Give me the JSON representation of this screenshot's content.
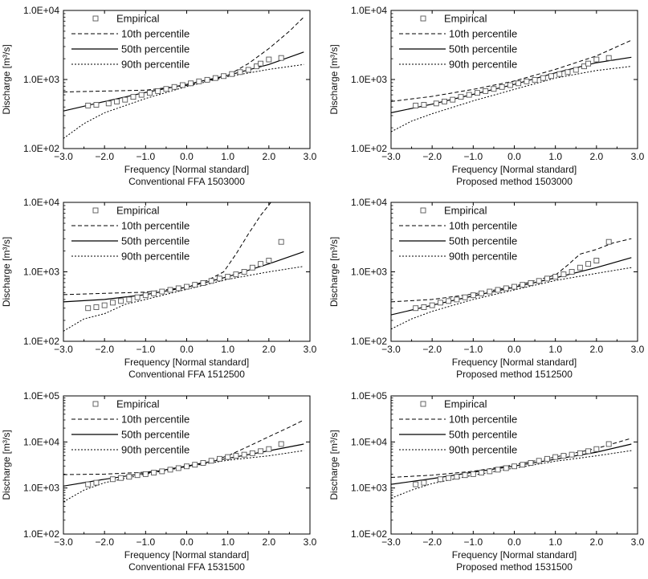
{
  "figure": {
    "legend_labels": [
      "Empirical",
      "10th percentile",
      "50th percentile",
      "90th percentile"
    ]
  },
  "chart_data": [
    {
      "type": "line",
      "title": "Conventional FFA 1503000",
      "xlabel": "Frequency [Normal standard]",
      "ylabel": "Discharge [m³/s]",
      "yscale": "log",
      "xlim": [
        -3.0,
        3.0
      ],
      "ylim": [
        100,
        10000
      ],
      "xticks": [
        "−3.0",
        "−2.0",
        "−1.0",
        "0.0",
        "1.0",
        "2.0",
        "3.0"
      ],
      "yticks": [
        "1.0E+02",
        "1.0E+03",
        "1.0E+04"
      ],
      "empirical": {
        "x": [
          -2.4,
          -2.2,
          -1.9,
          -1.7,
          -1.5,
          -1.3,
          -1.1,
          -0.9,
          -0.7,
          -0.5,
          -0.3,
          -0.1,
          0.1,
          0.3,
          0.5,
          0.7,
          0.9,
          1.1,
          1.3,
          1.5,
          1.7,
          1.8,
          2.0,
          2.3
        ],
        "y": [
          420,
          430,
          450,
          480,
          510,
          560,
          600,
          640,
          680,
          730,
          780,
          830,
          880,
          940,
          990,
          1050,
          1120,
          1200,
          1280,
          1380,
          1550,
          1700,
          1950,
          2050
        ]
      },
      "series": [
        {
          "name": "10th percentile",
          "x": [
            -3.0,
            -2.0,
            -1.0,
            0.0,
            0.5,
            1.0,
            1.5,
            2.0,
            2.5,
            2.85
          ],
          "y": [
            660,
            680,
            700,
            820,
            950,
            1150,
            1700,
            2800,
            5000,
            8000
          ]
        },
        {
          "name": "50th percentile",
          "x": [
            -3.0,
            -2.0,
            -1.0,
            0.0,
            1.0,
            2.0,
            2.85
          ],
          "y": [
            350,
            480,
            650,
            850,
            1150,
            1650,
            2500
          ]
        },
        {
          "name": "90th percentile",
          "x": [
            -3.0,
            -2.5,
            -2.0,
            -1.0,
            0.0,
            1.0,
            2.0,
            2.85
          ],
          "y": [
            140,
            230,
            330,
            530,
            790,
            1100,
            1400,
            1650
          ]
        }
      ]
    },
    {
      "type": "line",
      "title": "Proposed method 1503000",
      "xlabel": "Frequency [Normal standard]",
      "ylabel": "Discharge [m³/s]",
      "yscale": "log",
      "xlim": [
        -3.0,
        3.0
      ],
      "ylim": [
        100,
        10000
      ],
      "xticks": [
        "−3.0",
        "−2.0",
        "−1.0",
        "0.0",
        "1.0",
        "2.0",
        "3.0"
      ],
      "yticks": [
        "1.0E+02",
        "1.0E+03",
        "1.0E+04"
      ],
      "empirical": {
        "x": [
          -2.4,
          -2.2,
          -1.9,
          -1.7,
          -1.5,
          -1.3,
          -1.1,
          -0.9,
          -0.7,
          -0.5,
          -0.3,
          -0.1,
          0.1,
          0.3,
          0.5,
          0.7,
          0.9,
          1.1,
          1.3,
          1.5,
          1.7,
          1.8,
          2.0,
          2.3
        ],
        "y": [
          420,
          430,
          450,
          480,
          510,
          560,
          600,
          640,
          680,
          730,
          780,
          830,
          880,
          940,
          990,
          1050,
          1120,
          1200,
          1280,
          1380,
          1550,
          1700,
          1950,
          2050
        ]
      },
      "series": [
        {
          "name": "10th percentile",
          "x": [
            -3.0,
            -2.0,
            -1.0,
            0.0,
            1.0,
            2.0,
            2.85
          ],
          "y": [
            480,
            570,
            720,
            950,
            1400,
            2200,
            3700
          ]
        },
        {
          "name": "50th percentile",
          "x": [
            -3.0,
            -2.0,
            -1.0,
            0.0,
            1.0,
            2.0,
            2.85
          ],
          "y": [
            330,
            440,
            610,
            850,
            1250,
            1750,
            2100
          ]
        },
        {
          "name": "90th percentile",
          "x": [
            -3.0,
            -2.5,
            -2.0,
            -1.0,
            0.0,
            1.0,
            2.0,
            2.85
          ],
          "y": [
            175,
            250,
            320,
            490,
            720,
            1050,
            1350,
            1550
          ]
        }
      ]
    },
    {
      "type": "line",
      "title": "Conventional FFA 1512500",
      "xlabel": "Frequency [Normal standard]",
      "ylabel": "Discharge [m³/s]",
      "yscale": "log",
      "xlim": [
        -3.0,
        3.0
      ],
      "ylim": [
        100,
        10000
      ],
      "xticks": [
        "−3.0",
        "−2.0",
        "−1.0",
        "0.0",
        "1.0",
        "2.0",
        "3.0"
      ],
      "yticks": [
        "1.0E+02",
        "1.0E+03",
        "1.0E+04"
      ],
      "empirical": {
        "x": [
          -2.4,
          -2.2,
          -2.0,
          -1.8,
          -1.6,
          -1.4,
          -1.2,
          -1.0,
          -0.8,
          -0.6,
          -0.4,
          -0.2,
          0.0,
          0.2,
          0.4,
          0.6,
          0.8,
          1.0,
          1.2,
          1.4,
          1.6,
          1.8,
          2.0,
          2.3
        ],
        "y": [
          300,
          310,
          330,
          360,
          380,
          400,
          430,
          460,
          490,
          520,
          550,
          580,
          610,
          650,
          690,
          740,
          800,
          850,
          920,
          1000,
          1150,
          1300,
          1450,
          2700
        ]
      },
      "series": [
        {
          "name": "10th percentile",
          "x": [
            -3.0,
            -2.0,
            -1.0,
            0.0,
            0.5,
            0.9,
            1.2,
            1.5,
            1.8,
            2.05
          ],
          "y": [
            470,
            490,
            510,
            600,
            750,
            1000,
            1800,
            3500,
            6500,
            10000
          ]
        },
        {
          "name": "50th percentile",
          "x": [
            -3.0,
            -2.0,
            -1.0,
            0.0,
            1.0,
            2.0,
            2.85
          ],
          "y": [
            370,
            400,
            470,
            600,
            850,
            1300,
            1950
          ]
        },
        {
          "name": "90th percentile",
          "x": [
            -3.0,
            -2.5,
            -2.0,
            -1.5,
            -1.0,
            0.0,
            1.0,
            2.0,
            2.85
          ],
          "y": [
            140,
            210,
            250,
            340,
            400,
            560,
            780,
            1000,
            1200
          ]
        }
      ]
    },
    {
      "type": "line",
      "title": "Proposed method 1512500",
      "xlabel": "Frequency [Normal standard]",
      "ylabel": "Discharge [m³/s]",
      "yscale": "log",
      "xlim": [
        -3.0,
        3.0
      ],
      "ylim": [
        100,
        10000
      ],
      "xticks": [
        "−3.0",
        "−2.0",
        "−1.0",
        "0.0",
        "1.0",
        "2.0",
        "3.0"
      ],
      "yticks": [
        "1.0E+02",
        "1.0E+03",
        "1.0E+04"
      ],
      "empirical": {
        "x": [
          -2.4,
          -2.2,
          -2.0,
          -1.8,
          -1.6,
          -1.4,
          -1.2,
          -1.0,
          -0.8,
          -0.6,
          -0.4,
          -0.2,
          0.0,
          0.2,
          0.4,
          0.6,
          0.8,
          1.0,
          1.2,
          1.4,
          1.6,
          1.8,
          2.0,
          2.3
        ],
        "y": [
          300,
          310,
          330,
          360,
          380,
          400,
          430,
          460,
          490,
          520,
          550,
          580,
          610,
          650,
          690,
          740,
          800,
          850,
          920,
          1000,
          1150,
          1300,
          1450,
          2700
        ]
      },
      "series": [
        {
          "name": "10th percentile",
          "x": [
            -3.0,
            -2.0,
            -1.0,
            0.0,
            1.0,
            1.3,
            1.6,
            2.0,
            2.4,
            2.85
          ],
          "y": [
            370,
            400,
            480,
            620,
            900,
            1250,
            1800,
            2100,
            2600,
            3000
          ]
        },
        {
          "name": "50th percentile",
          "x": [
            -3.0,
            -2.0,
            -1.0,
            0.0,
            1.0,
            2.0,
            2.85
          ],
          "y": [
            240,
            330,
            450,
            600,
            820,
            1150,
            1600
          ]
        },
        {
          "name": "90th percentile",
          "x": [
            -3.0,
            -2.5,
            -2.0,
            -1.0,
            0.0,
            1.0,
            2.0,
            2.85
          ],
          "y": [
            150,
            210,
            270,
            400,
            550,
            750,
            950,
            1150
          ]
        }
      ]
    },
    {
      "type": "line",
      "title": "Conventional FFA 1531500",
      "xlabel": "Frequency [Normal standard]",
      "ylabel": "Discharge [m³/s]",
      "yscale": "log",
      "xlim": [
        -3.0,
        3.0
      ],
      "ylim": [
        100,
        100000
      ],
      "xticks": [
        "−3.0",
        "−2.0",
        "−1.0",
        "0.0",
        "1.0",
        "2.0",
        "3.0"
      ],
      "yticks": [
        "1.0E+02",
        "1.0E+03",
        "1.0E+04",
        "1.0E+05"
      ],
      "empirical": {
        "x": [
          -2.4,
          -2.2,
          -1.8,
          -1.6,
          -1.4,
          -1.2,
          -1.0,
          -0.8,
          -0.6,
          -0.4,
          -0.2,
          0.0,
          0.2,
          0.4,
          0.6,
          0.8,
          1.0,
          1.2,
          1.4,
          1.6,
          1.8,
          2.0,
          2.3
        ],
        "y": [
          1200,
          1300,
          1550,
          1650,
          1750,
          1900,
          2000,
          2150,
          2300,
          2500,
          2700,
          2950,
          3200,
          3500,
          3900,
          4300,
          4700,
          5000,
          5300,
          5700,
          6300,
          7000,
          9000
        ]
      },
      "series": [
        {
          "name": "10th percentile",
          "x": [
            -3.0,
            -2.0,
            -1.0,
            0.0,
            0.5,
            1.0,
            1.5,
            2.0,
            2.5,
            2.85
          ],
          "y": [
            1950,
            2000,
            2200,
            2900,
            3600,
            5000,
            8000,
            13000,
            21000,
            30000
          ]
        },
        {
          "name": "50th percentile",
          "x": [
            -3.0,
            -2.0,
            -1.0,
            0.0,
            1.0,
            2.0,
            2.85
          ],
          "y": [
            1100,
            1550,
            2100,
            3000,
            4400,
            6400,
            9000
          ]
        },
        {
          "name": "90th percentile",
          "x": [
            -3.0,
            -2.5,
            -2.0,
            -1.0,
            0.0,
            1.0,
            2.0,
            2.85
          ],
          "y": [
            500,
            900,
            1300,
            2000,
            2900,
            4000,
            5000,
            6500
          ]
        }
      ]
    },
    {
      "type": "line",
      "title": "Proposed method 1531500",
      "xlabel": "Frequency [Normal standard]",
      "ylabel": "Discharge [m³/s]",
      "yscale": "log",
      "xlim": [
        -3.0,
        3.0
      ],
      "ylim": [
        100,
        100000
      ],
      "xticks": [
        "−3.0",
        "−2.0",
        "−1.0",
        "0.0",
        "1.0",
        "2.0",
        "3.0"
      ],
      "yticks": [
        "1.0E+02",
        "1.0E+03",
        "1.0E+04",
        "1.0E+05"
      ],
      "empirical": {
        "x": [
          -2.4,
          -2.2,
          -1.8,
          -1.6,
          -1.4,
          -1.2,
          -1.0,
          -0.8,
          -0.6,
          -0.4,
          -0.2,
          0.0,
          0.2,
          0.4,
          0.6,
          0.8,
          1.0,
          1.2,
          1.4,
          1.6,
          1.8,
          2.0,
          2.3
        ],
        "y": [
          1200,
          1300,
          1550,
          1650,
          1750,
          1900,
          2000,
          2150,
          2300,
          2500,
          2700,
          2950,
          3200,
          3500,
          3900,
          4300,
          4700,
          5000,
          5300,
          5700,
          6300,
          7000,
          9000
        ]
      },
      "series": [
        {
          "name": "10th percentile",
          "x": [
            -3.0,
            -2.0,
            -1.0,
            0.0,
            1.0,
            2.0,
            2.85
          ],
          "y": [
            1700,
            1900,
            2300,
            3200,
            4700,
            7200,
            12000
          ]
        },
        {
          "name": "50th percentile",
          "x": [
            -3.0,
            -2.0,
            -1.0,
            0.0,
            1.0,
            2.0,
            2.85
          ],
          "y": [
            1200,
            1600,
            2200,
            3000,
            4200,
            6000,
            9000
          ]
        },
        {
          "name": "90th percentile",
          "x": [
            -3.0,
            -2.5,
            -2.0,
            -1.0,
            0.0,
            1.0,
            2.0,
            2.85
          ],
          "y": [
            600,
            900,
            1250,
            1900,
            2700,
            3800,
            5000,
            6500
          ]
        }
      ]
    }
  ]
}
